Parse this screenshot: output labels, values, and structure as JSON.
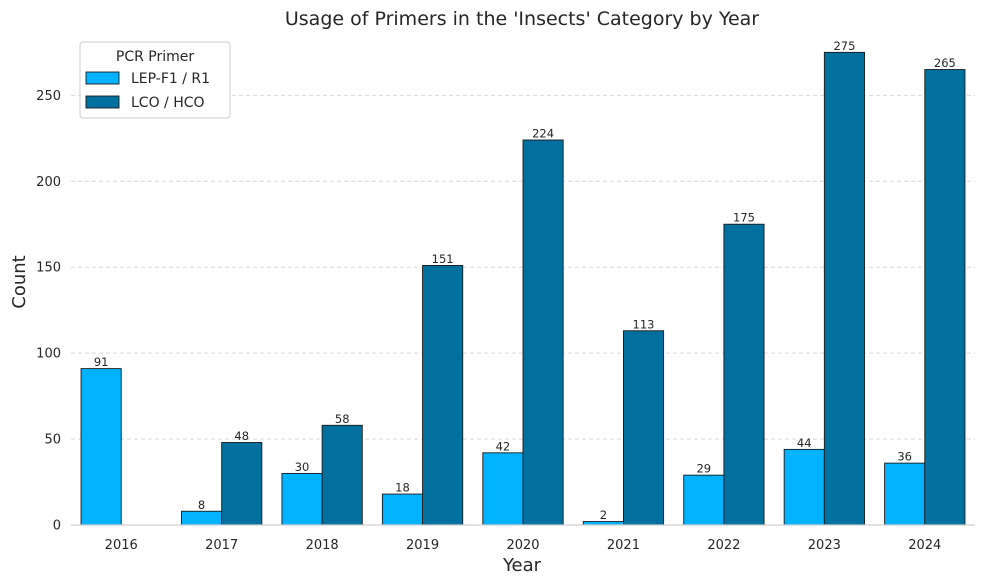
{
  "chart_data": {
    "type": "bar",
    "title": "Usage of Primers in the 'Insects' Category by Year",
    "xlabel": "Year",
    "ylabel": "Count",
    "categories": [
      "2016",
      "2017",
      "2018",
      "2019",
      "2020",
      "2021",
      "2022",
      "2023",
      "2024"
    ],
    "series": [
      {
        "name": "LEP-F1 / R1",
        "color": "#00b2ff",
        "values": [
          91,
          8,
          30,
          18,
          42,
          2,
          29,
          44,
          36
        ],
        "labels": [
          "91",
          "8",
          "30",
          "18",
          "42",
          "2",
          "29",
          "44",
          "36"
        ]
      },
      {
        "name": "LCO / HCO",
        "color": "#00709e",
        "values": [
          null,
          48,
          58,
          151,
          224,
          113,
          175,
          275,
          265
        ],
        "labels": [
          null,
          "48",
          "58",
          "151",
          "224",
          "113",
          "175",
          "275",
          "265"
        ]
      }
    ],
    "ylim": [
      0,
      288
    ],
    "yticks": [
      0,
      50,
      100,
      150,
      200,
      250
    ],
    "ytick_labels": [
      "0",
      "50",
      "100",
      "150",
      "200",
      "250"
    ],
    "grid": "y-dashed",
    "legend": {
      "title": "PCR Primer",
      "placement": "top-left"
    }
  }
}
